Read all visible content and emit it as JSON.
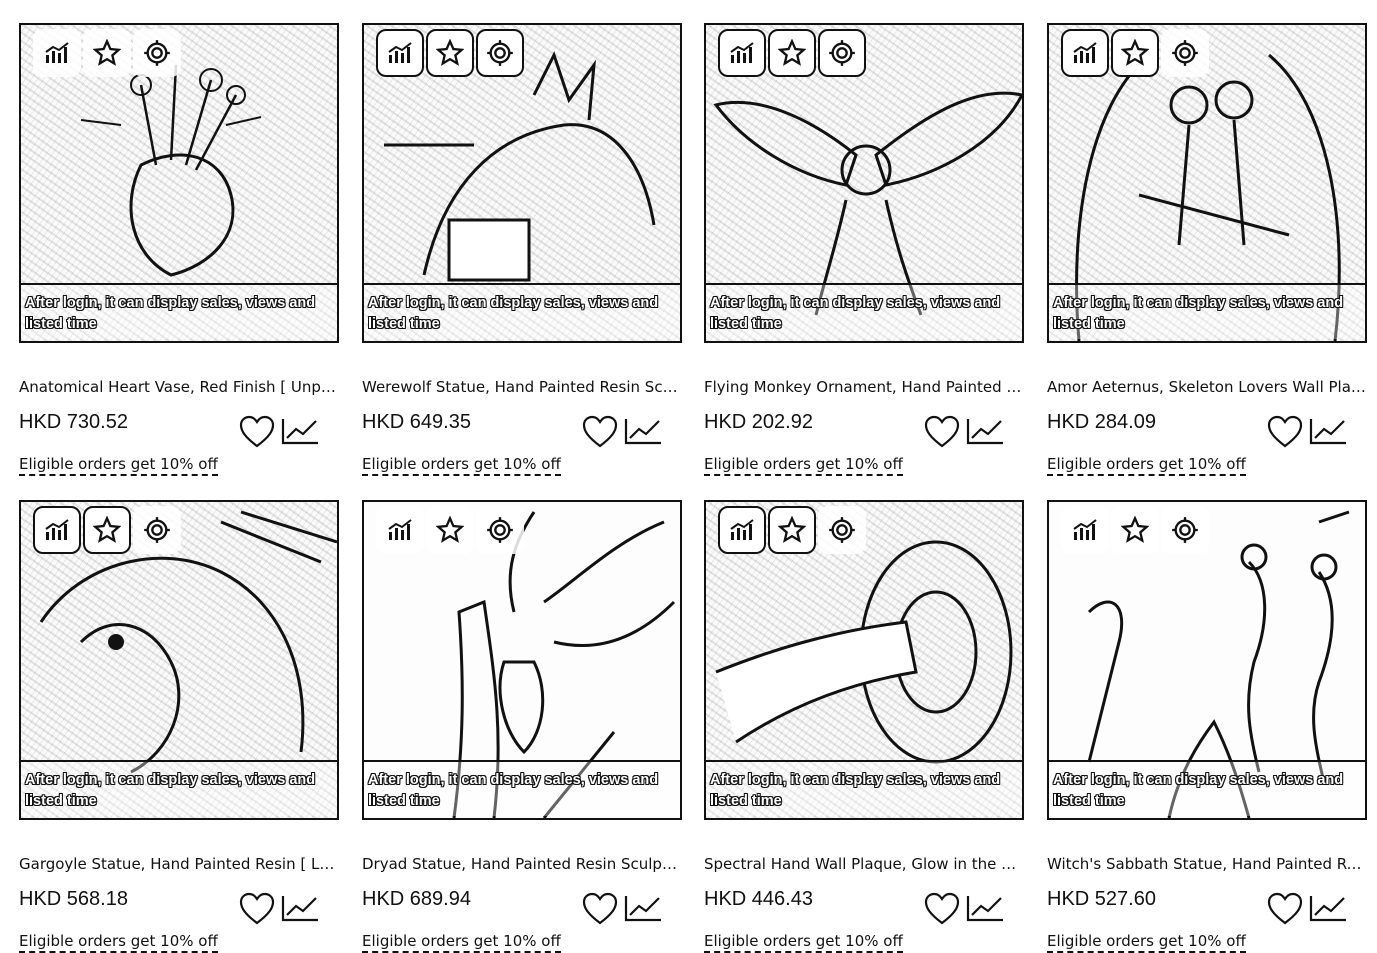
{
  "overlay_text": "After login, it can display sales, views and listed time",
  "promo_text": "Eligible orders get 10% off",
  "icons": {
    "tools": [
      "chart-bar-icon",
      "star-icon",
      "target-icon"
    ],
    "actions": [
      "heart-icon",
      "trend-line-icon"
    ]
  },
  "products": [
    {
      "title": "Anatomical Heart Vase, Red Finish [ Unpainted ]",
      "price": "HKD 730.52",
      "tools_style": "plain"
    },
    {
      "title": "Werewolf Statue, Hand Painted Resin Sculpture",
      "price": "HKD 649.35",
      "tools_style": "boxed"
    },
    {
      "title": "Flying Monkey Ornament, Hand Painted Resin",
      "price": "HKD 202.92",
      "tools_style": "boxed"
    },
    {
      "title": "Amor Aeternus, Skeleton Lovers Wall Plaque",
      "price": "HKD 284.09",
      "tools_style": "boxed"
    },
    {
      "title": "Gargoyle Statue, Hand Painted Resin [ Large ]",
      "price": "HKD 568.18",
      "tools_style": "boxed"
    },
    {
      "title": "Dryad Statue, Hand Painted Resin Sculpture",
      "price": "HKD 689.94",
      "tools_style": "plain"
    },
    {
      "title": "Spectral Hand Wall Plaque, Glow in the Dark",
      "price": "HKD 446.43",
      "tools_style": "boxed"
    },
    {
      "title": "Witch's Sabbath Statue, Hand Painted Resin",
      "price": "HKD 527.60",
      "tools_style": "plain"
    }
  ]
}
